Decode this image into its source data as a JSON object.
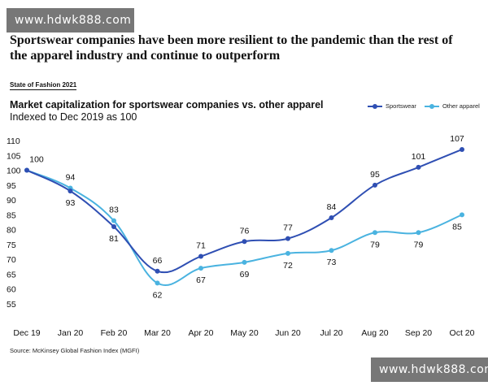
{
  "watermark": {
    "top_text": "www.hdwk888.com",
    "bottom_text": "www.hdwk888.com"
  },
  "headline": "Sportswear companies have been more resilient to the pandemic than the rest of the apparel industry and continue to outperform",
  "report_tag": "State of Fashion 2021",
  "source": "Source: McKinsey Global Fashion Index (MGFI)",
  "colors": {
    "sportswear": "#2f4fb3",
    "other_apparel": "#4ab3e0"
  },
  "chart_data": {
    "type": "line",
    "title": "Market capitalization for sportswear companies vs. other apparel",
    "subtitle": "Indexed to Dec 2019 as 100",
    "categories": [
      "Dec 19",
      "Jan 20",
      "Feb 20",
      "Mar 20",
      "Apr 20",
      "May 20",
      "Jun 20",
      "Jul 20",
      "Aug 20",
      "Sep 20",
      "Oct 20"
    ],
    "series": [
      {
        "name": "Sportswear",
        "values": [
          100,
          93,
          81,
          66,
          71,
          76,
          77,
          84,
          95,
          101,
          107
        ]
      },
      {
        "name": "Other apparel",
        "values": [
          100,
          94,
          83,
          62,
          67,
          69,
          72,
          73,
          79,
          79,
          85
        ]
      }
    ],
    "data_labels": [
      {
        "series": 0,
        "index": 0,
        "text": "100"
      },
      {
        "series": 1,
        "index": 1,
        "text": "94"
      },
      {
        "series": 0,
        "index": 1,
        "text": "93"
      },
      {
        "series": 1,
        "index": 2,
        "text": "83"
      },
      {
        "series": 0,
        "index": 2,
        "text": "81"
      },
      {
        "series": 0,
        "index": 3,
        "text": "66"
      },
      {
        "series": 1,
        "index": 3,
        "text": "62"
      },
      {
        "series": 0,
        "index": 4,
        "text": "71"
      },
      {
        "series": 1,
        "index": 4,
        "text": "67"
      },
      {
        "series": 0,
        "index": 5,
        "text": "76"
      },
      {
        "series": 1,
        "index": 5,
        "text": "69"
      },
      {
        "series": 0,
        "index": 6,
        "text": "77"
      },
      {
        "series": 1,
        "index": 6,
        "text": "72"
      },
      {
        "series": 0,
        "index": 7,
        "text": "84"
      },
      {
        "series": 1,
        "index": 7,
        "text": "73"
      },
      {
        "series": 0,
        "index": 8,
        "text": "95"
      },
      {
        "series": 1,
        "index": 8,
        "text": "79"
      },
      {
        "series": 0,
        "index": 9,
        "text": "101"
      },
      {
        "series": 1,
        "index": 9,
        "text": "79"
      },
      {
        "series": 0,
        "index": 10,
        "text": "107"
      },
      {
        "series": 1,
        "index": 10,
        "text": "85"
      }
    ],
    "y_ticks": [
      55,
      60,
      65,
      70,
      75,
      80,
      85,
      90,
      95,
      100,
      105,
      110
    ],
    "ylim": [
      55,
      110
    ],
    "xlabel": "",
    "ylabel": "",
    "grid": false,
    "legend": "top-right"
  }
}
